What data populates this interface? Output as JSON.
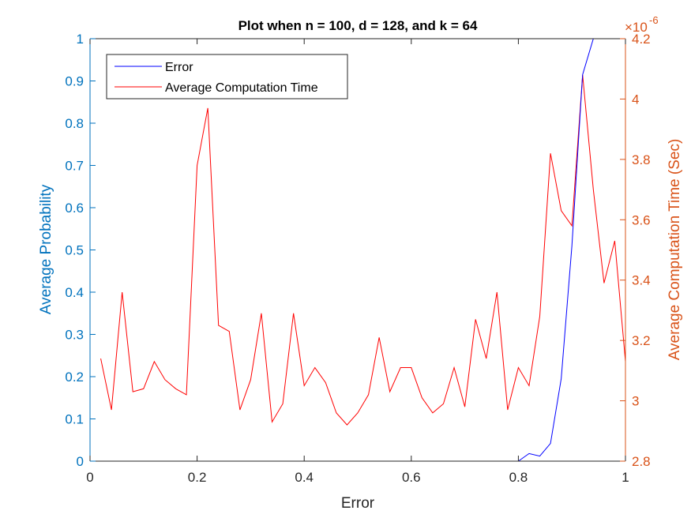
{
  "chart_data": {
    "type": "line",
    "title": "Plot when n = 100, d = 128, and k = 64",
    "xlabel": "Error",
    "ylabel_left": "Average Probability",
    "ylabel_right": "Average Computation Time (Sec)",
    "right_exponent_label": "×10",
    "right_exponent_power": "-6",
    "xlim": [
      0,
      1
    ],
    "ylim_left": [
      0,
      1
    ],
    "ylim_right": [
      2.8,
      4.2
    ],
    "xticks": [
      "0",
      "0.2",
      "0.4",
      "0.6",
      "0.8",
      "1"
    ],
    "yticks_left": [
      "0",
      "0.1",
      "0.2",
      "0.3",
      "0.4",
      "0.5",
      "0.6",
      "0.7",
      "0.8",
      "0.9",
      "1"
    ],
    "yticks_right": [
      "2.8",
      "3",
      "3.2",
      "3.4",
      "3.6",
      "3.8",
      "4",
      "4.2"
    ],
    "legend_position": "top-left",
    "colors": {
      "error_line": "#0000ff",
      "time_line": "#ff0000",
      "left_axis": "#0072bd",
      "right_axis": "#d95319",
      "axis_black": "#262626"
    },
    "series": [
      {
        "name": "Error",
        "axis": "left",
        "x": [
          0.8,
          0.82,
          0.84,
          0.86,
          0.88,
          0.9,
          0.92,
          0.94,
          0.96,
          0.98,
          1.0
        ],
        "y": [
          0.0,
          0.018,
          0.012,
          0.042,
          0.195,
          0.51,
          0.915,
          1.0,
          1.0,
          1.0,
          1.0
        ]
      },
      {
        "name": "Average Computation Time",
        "axis": "right",
        "x": [
          0.02,
          0.04,
          0.06,
          0.08,
          0.1,
          0.12,
          0.14,
          0.16,
          0.18,
          0.2,
          0.22,
          0.24,
          0.26,
          0.28,
          0.3,
          0.32,
          0.34,
          0.36,
          0.38,
          0.4,
          0.42,
          0.44,
          0.46,
          0.48,
          0.5,
          0.52,
          0.54,
          0.56,
          0.58,
          0.6,
          0.62,
          0.64,
          0.66,
          0.68,
          0.7,
          0.72,
          0.74,
          0.76,
          0.78,
          0.8,
          0.82,
          0.84,
          0.86,
          0.88,
          0.9,
          0.92,
          0.94,
          0.96,
          0.98,
          1.0
        ],
        "y": [
          3.14,
          2.97,
          3.36,
          3.03,
          3.04,
          3.13,
          3.07,
          3.04,
          3.02,
          3.78,
          3.97,
          3.25,
          3.23,
          2.97,
          3.07,
          3.29,
          2.93,
          2.99,
          3.29,
          3.05,
          3.11,
          3.06,
          2.96,
          2.92,
          2.96,
          3.02,
          3.21,
          3.03,
          3.11,
          3.11,
          3.01,
          2.96,
          2.99,
          3.11,
          2.98,
          3.27,
          3.14,
          3.36,
          2.97,
          3.11,
          3.05,
          3.28,
          3.82,
          3.63,
          3.58,
          4.08,
          3.7,
          3.39,
          3.53,
          3.13
        ]
      }
    ]
  }
}
